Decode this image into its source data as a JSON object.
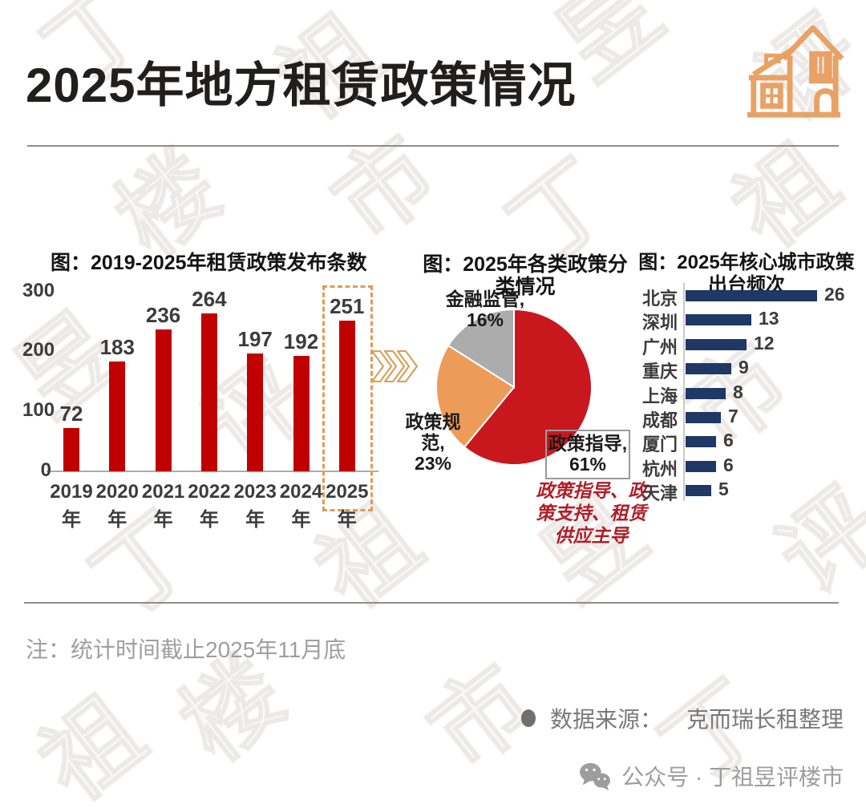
{
  "header": {
    "title": "2025年地方租赁政策情况",
    "icon": "house-icon",
    "icon_color": "#E8A266"
  },
  "watermark": {
    "text": "丁祖昱评楼市"
  },
  "chart_data": [
    {
      "type": "bar",
      "title": "图：2019-2025年租赁政策发布条数",
      "categories": [
        "2019年",
        "2020年",
        "2021年",
        "2022年",
        "2023年",
        "2024年",
        "2025年"
      ],
      "values": [
        72,
        183,
        236,
        264,
        197,
        192,
        251
      ],
      "ylim": [
        0,
        300
      ],
      "yticks": [
        300,
        200,
        100,
        0
      ],
      "bar_color": "#C00000",
      "grid": false,
      "legend": "none",
      "highlight": {
        "category": "2025年",
        "style": "orange dashed outline box",
        "color": "#E09B54"
      }
    },
    {
      "type": "pie",
      "title": "图：2025年各类政策分类情况",
      "title_lines": [
        "图：2025年各类政策分",
        "类情况"
      ],
      "labels": [
        "政策指导",
        "政策规范",
        "金融监管"
      ],
      "values": [
        61,
        23,
        16
      ],
      "colors": [
        "#C9171E",
        "#ED9B58",
        "#ACACAC"
      ],
      "start_angle_deg": 0,
      "direction": "clockwise",
      "slice_label_lines": {
        "guidance": [
          "政策指导,",
          "61%"
        ],
        "regulation": [
          "政策规范,",
          "23%"
        ],
        "supervision": [
          "金融监管,",
          "16%"
        ]
      },
      "annotation_lines": [
        "政策指导、政",
        "策支持、租赁",
        "供应主导"
      ],
      "annotation_color": "#B01E28"
    },
    {
      "type": "bar",
      "orientation": "horizontal",
      "title": "图：2025年核心城市政策出台频次",
      "title_lines": [
        "图：2025年核心城市政策",
        "出台频次"
      ],
      "categories": [
        "北京",
        "深圳",
        "广州",
        "重庆",
        "上海",
        "成都",
        "厦门",
        "杭州",
        "天津"
      ],
      "values": [
        26,
        13,
        12,
        9,
        8,
        7,
        6,
        6,
        5
      ],
      "bar_color": "#1F3864",
      "grid": false,
      "legend": "none"
    }
  ],
  "connector": {
    "icon": "triple-chevron-right-icon",
    "color": "#D7A15F"
  },
  "note": "注：统计时间截止2025年11月底",
  "source": {
    "label": "数据来源：",
    "value": "克而瑞长租整理"
  },
  "footer": {
    "icon": "wechat-icon",
    "label": "公众号 · 丁祖昱评楼市"
  }
}
